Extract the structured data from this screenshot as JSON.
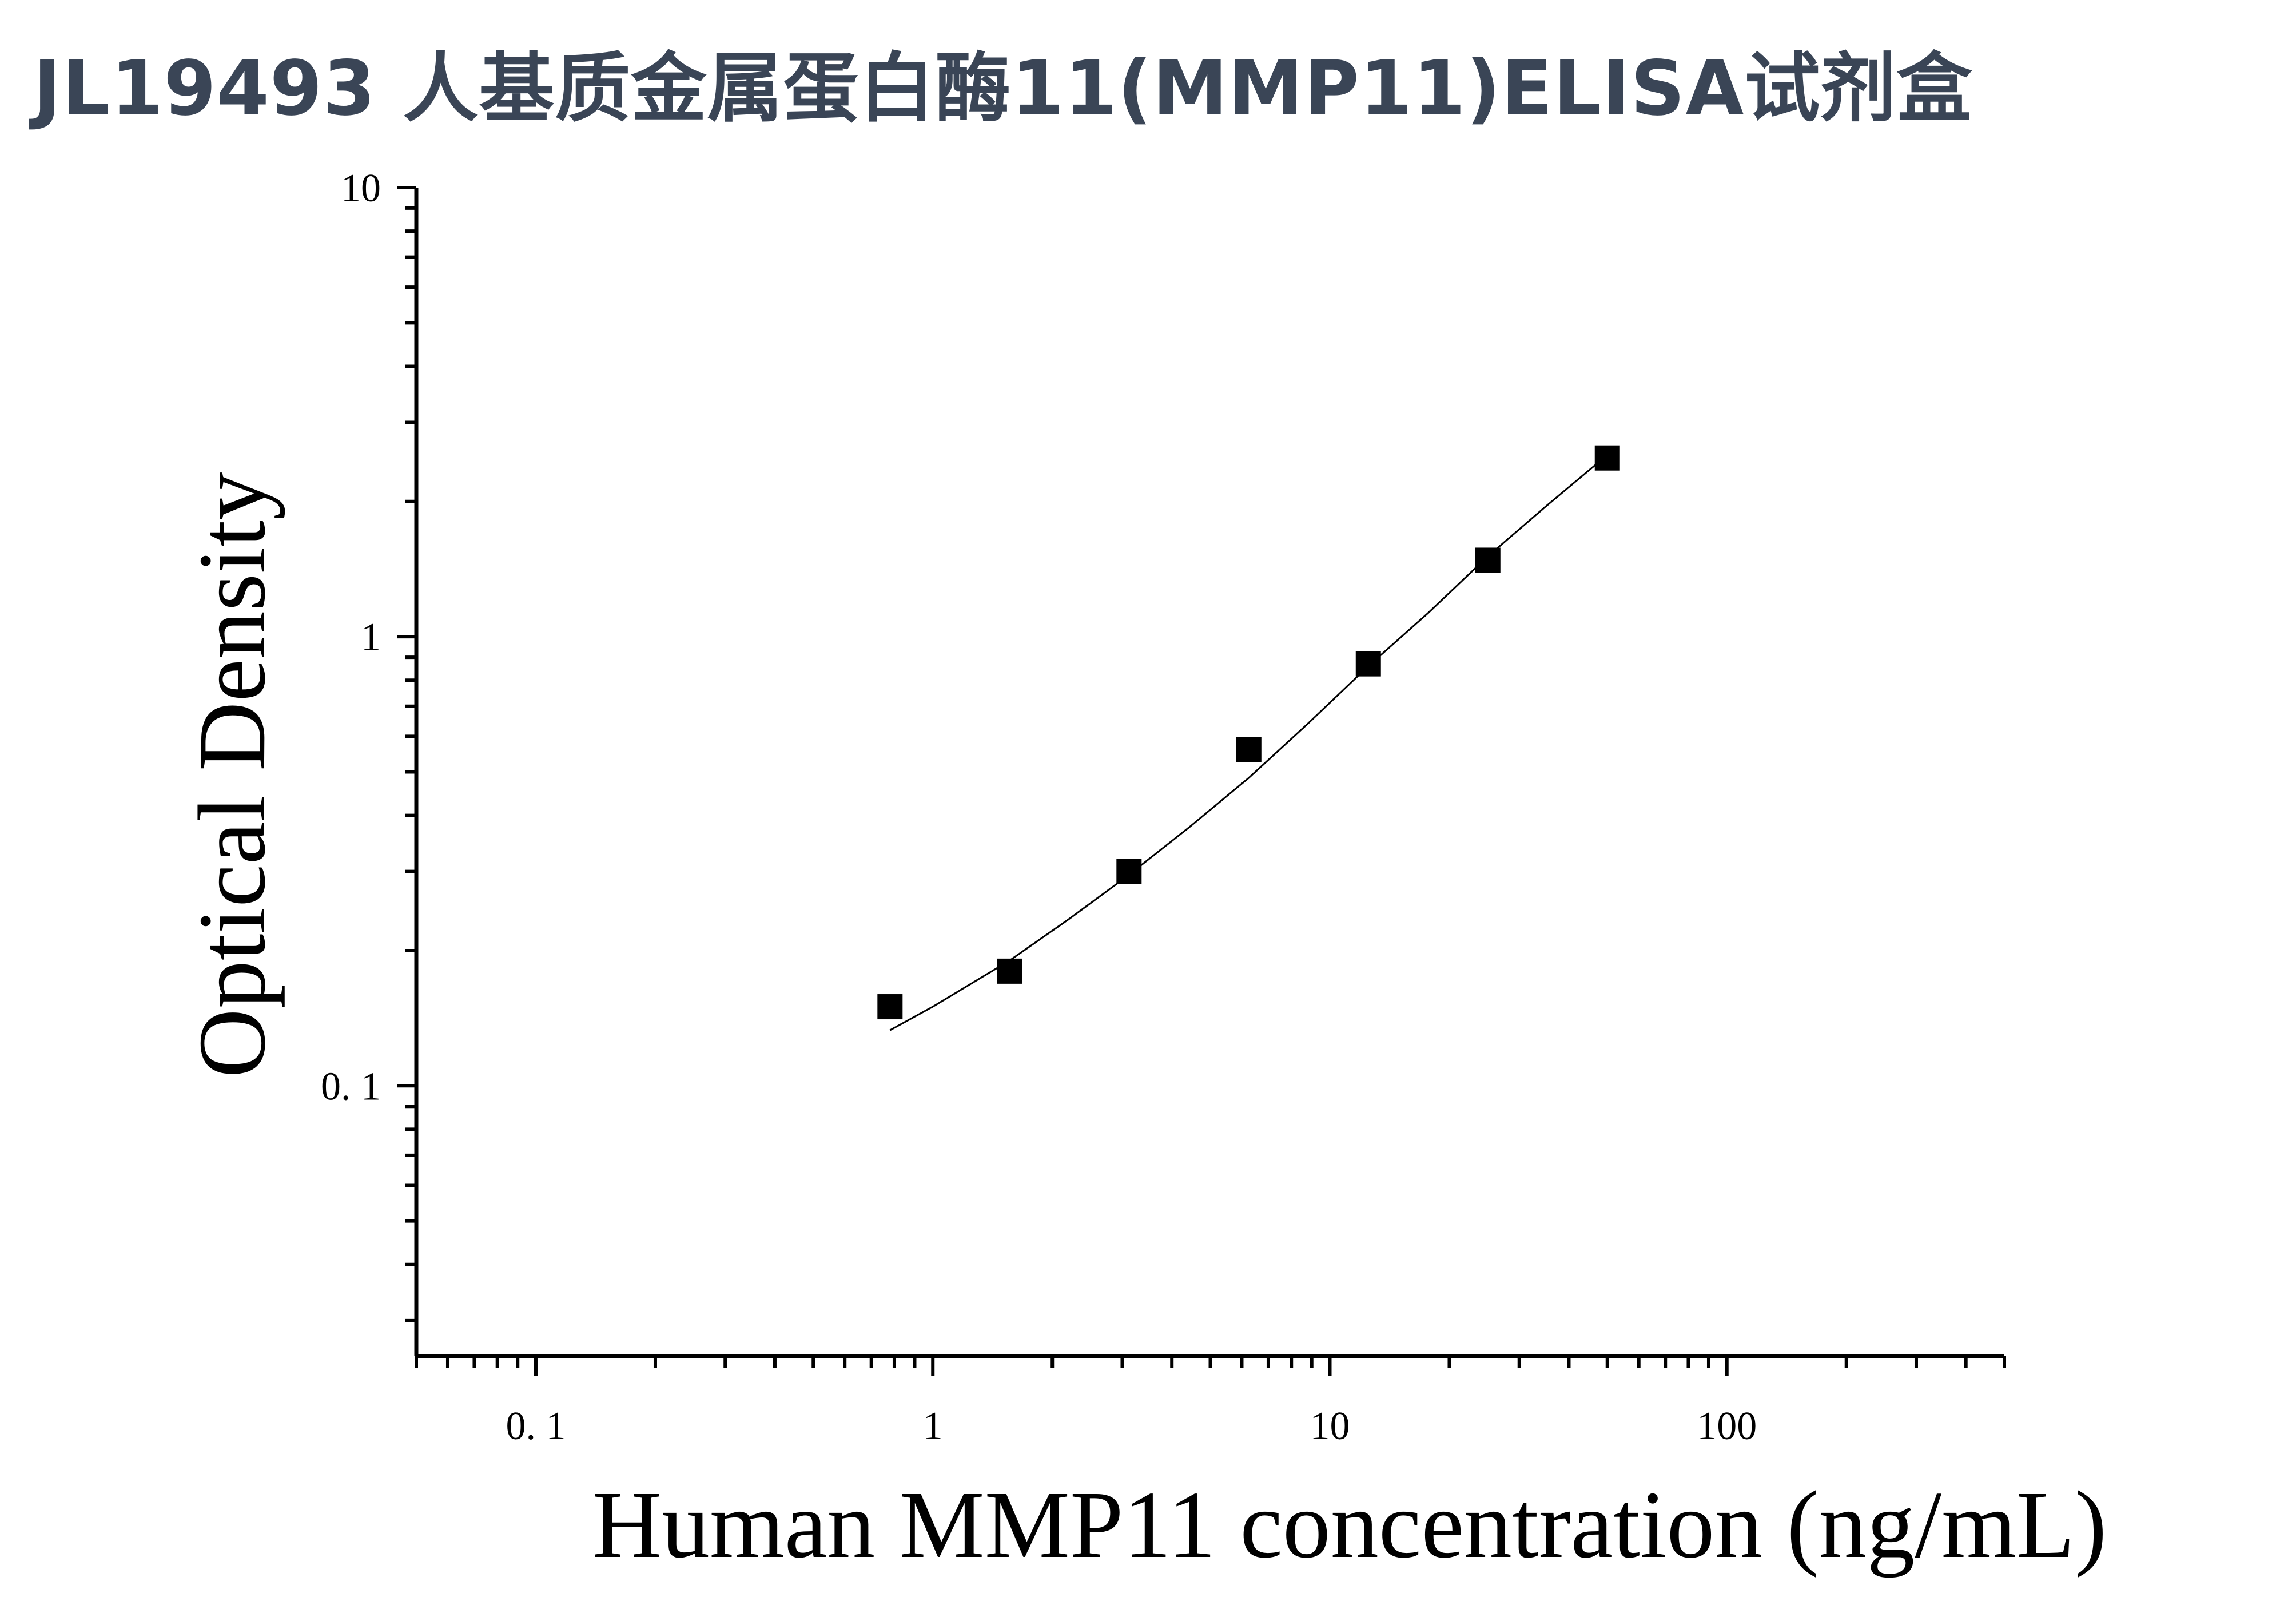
{
  "title": "JL19493 人基质金属蛋白酶11(MMP11)ELISA试剂盒",
  "chart_data": {
    "type": "scatter",
    "xlabel": "Human MMP11 concentration (ng/mL)",
    "ylabel": "Optical Density",
    "xscale": "log",
    "yscale": "log",
    "xlim": [
      0.05,
      500
    ],
    "ylim": [
      0.025,
      10
    ],
    "x_ticks": [
      0.1,
      1,
      10,
      100
    ],
    "x_tick_labels": [
      "0. 1",
      "1",
      "10",
      "100"
    ],
    "y_ticks": [
      0.1,
      1,
      10
    ],
    "y_tick_labels": [
      "0. 1",
      "1",
      "10"
    ],
    "series": [
      {
        "marker": "square",
        "color": "#000000",
        "x": [
          0.78,
          1.56,
          3.12,
          6.25,
          12.5,
          25,
          50
        ],
        "y": [
          0.15,
          0.18,
          0.3,
          0.56,
          0.87,
          1.48,
          2.5
        ]
      }
    ],
    "fit_curve": {
      "color": "#000000",
      "x": [
        0.78,
        1.0,
        1.56,
        2.2,
        3.12,
        4.4,
        6.25,
        8.8,
        12.5,
        17.7,
        25,
        35,
        50
      ],
      "y": [
        0.133,
        0.15,
        0.19,
        0.235,
        0.295,
        0.375,
        0.485,
        0.64,
        0.86,
        1.13,
        1.51,
        1.95,
        2.54
      ]
    }
  }
}
